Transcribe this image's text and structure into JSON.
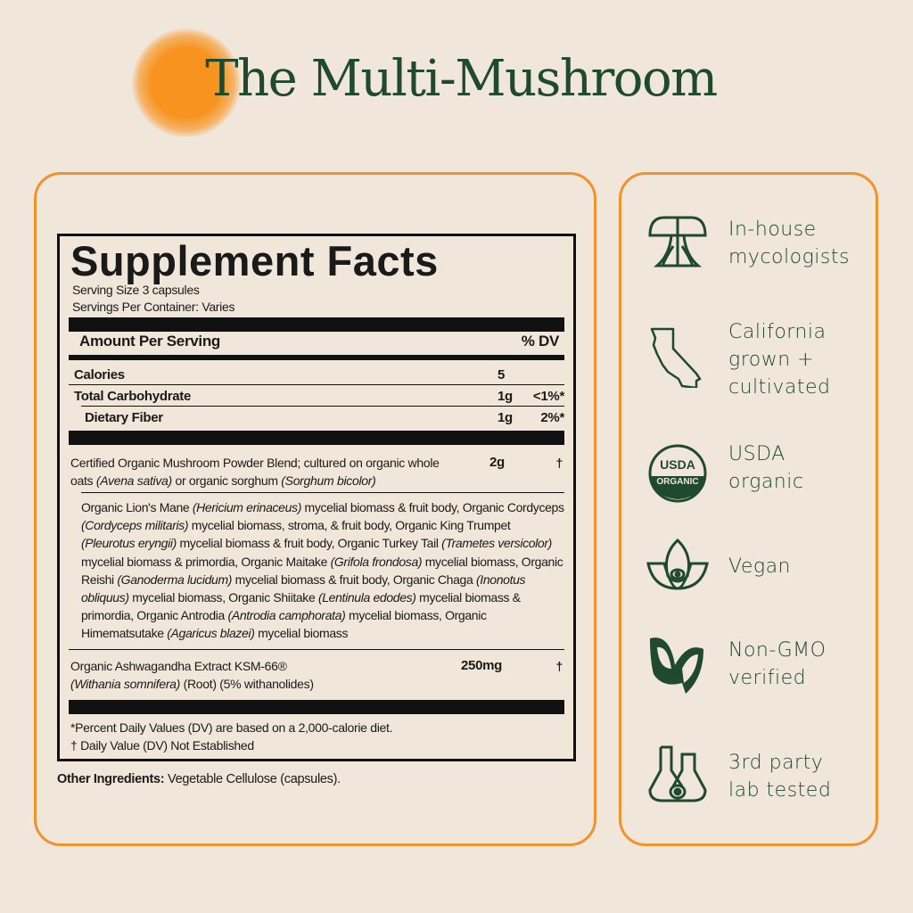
{
  "title": "The Multi-Mushroom",
  "facts": {
    "heading": "Supplement Facts",
    "serving_size": "Serving Size 3 capsules",
    "servings_per_container": "Servings Per Container: Varies",
    "amount_per_serving": "Amount Per Serving",
    "dv_header": "% DV",
    "rows": [
      {
        "name": "Calories",
        "amount": "5",
        "dv": ""
      },
      {
        "name": "Total Carbohydrate",
        "amount": "1g",
        "dv": "<1%*"
      },
      {
        "name": "Dietary Fiber",
        "amount": "1g",
        "dv": "2%*"
      }
    ],
    "blend": {
      "line1": "Certified Organic Mushroom Powder Blend; cultured on organic whole",
      "line2a": "oats ",
      "line2b": "(Avena sativa)",
      "line2c": " or organic sorghum ",
      "line2d": "(Sorghum bicolor)",
      "amount": "2g",
      "dv": "†"
    },
    "blend_ingredients": [
      {
        "t": "Organic Lion's Mane ",
        "i": false
      },
      {
        "t": "(Hericium erinaceus)",
        "i": true
      },
      {
        "t": " mycelial biomass & fruit body, Organic Cordyceps ",
        "i": false
      },
      {
        "t": "(Cordyceps militaris)",
        "i": true
      },
      {
        "t": " mycelial biomass, stroma, & fruit body, Organic King Trumpet ",
        "i": false
      },
      {
        "t": "(Pleurotus eryngii)",
        "i": true
      },
      {
        "t": " mycelial biomass & fruit body, Organic Turkey Tail ",
        "i": false
      },
      {
        "t": "(Trametes versicolor)",
        "i": true
      },
      {
        "t": " mycelial biomass & primordia, Organic Maitake ",
        "i": false
      },
      {
        "t": "(Grifola frondosa)",
        "i": true
      },
      {
        "t": " mycelial biomass, Organic Reishi ",
        "i": false
      },
      {
        "t": "(Ganoderma lucidum)",
        "i": true
      },
      {
        "t": " mycelial biomass & fruit body, Organic Chaga ",
        "i": false
      },
      {
        "t": "(Inonotus obliquus)",
        "i": true
      },
      {
        "t": " mycelial biomass, Organic Shiitake ",
        "i": false
      },
      {
        "t": "(Lentinula edodes)",
        "i": true
      },
      {
        "t": " mycelial biomass & primordia, Organic Antrodia ",
        "i": false
      },
      {
        "t": "(Antrodia camphorata)",
        "i": true
      },
      {
        "t": " mycelial biomass, Organic Himematsutake ",
        "i": false
      },
      {
        "t": "(Agaricus blazei)",
        "i": true
      },
      {
        "t": " mycelial biomass",
        "i": false
      }
    ],
    "ashwagandha": {
      "line1": "Organic Ashwagandha Extract KSM-66®",
      "line2a": "(Withania somnifera)",
      "line2b": " (Root) (5% withanolides)",
      "amount": "250mg",
      "dv": "†"
    },
    "footnote1": "*Percent Daily Values (DV) are based on a 2,000-calorie diet.",
    "footnote2": "† Daily Value (DV) Not Established"
  },
  "other_ingredients": {
    "label": "Other Ingredients:",
    "value": " Vegetable Cellulose (capsules)."
  },
  "features": [
    {
      "icon": "mushroom-icon",
      "line1": "In-house",
      "line2": "mycologists"
    },
    {
      "icon": "california-icon",
      "line1": "California",
      "line2": "grown +",
      "line3": "cultivated"
    },
    {
      "icon": "usda-organic-icon",
      "line1": "USDA",
      "line2": "organic",
      "logo_text1": "USDA",
      "logo_text2": "ORGANIC"
    },
    {
      "icon": "lotus-icon",
      "line1": "Vegan"
    },
    {
      "icon": "leaf-icon",
      "line1": "Non-GMO",
      "line2": "verified"
    },
    {
      "icon": "flask-icon",
      "line1": "3rd party",
      "line2": "lab tested"
    }
  ],
  "colors": {
    "accent": "#f0922e",
    "green": "#1f4a2e",
    "background": "#f1e6da"
  }
}
